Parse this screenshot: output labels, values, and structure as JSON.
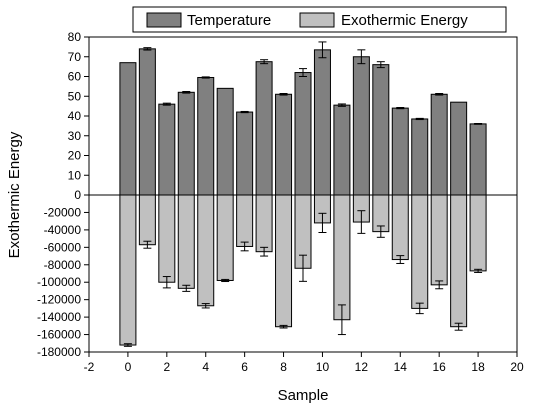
{
  "chart_data": {
    "type": "bar",
    "title": "",
    "xlabel": "Sample",
    "ylabel": "Exothermic Energy",
    "xlim": [
      -2,
      20
    ],
    "x_ticks": [
      -2,
      0,
      2,
      4,
      6,
      8,
      10,
      12,
      14,
      16,
      18,
      20
    ],
    "grid": false,
    "legend_position": "top",
    "upper_axis": {
      "ylim": [
        0,
        80
      ],
      "ticks": [
        0,
        10,
        20,
        30,
        40,
        50,
        60,
        70,
        80
      ]
    },
    "lower_axis": {
      "ylim": [
        -180000,
        0
      ],
      "ticks": [
        -180000,
        -160000,
        -140000,
        -120000,
        -100000,
        -80000,
        -60000,
        -40000,
        -20000
      ]
    },
    "series": [
      {
        "name": "Temperature",
        "color": "#808080",
        "x": [
          0,
          1,
          2,
          3,
          4,
          5,
          6,
          7,
          8,
          9,
          10,
          11,
          12,
          13,
          14,
          15,
          16,
          17,
          18
        ],
        "values": [
          67,
          74,
          46,
          52,
          59.5,
          54,
          42,
          67.5,
          51,
          62,
          73.5,
          45.5,
          70,
          66,
          44,
          38.5,
          51,
          47,
          36
        ],
        "errors": [
          0,
          0.6,
          0.5,
          0.4,
          0.3,
          0,
          0.3,
          1,
          0.4,
          2,
          4,
          0.6,
          3.5,
          1.5,
          0.3,
          0.3,
          0.4,
          0,
          0.2
        ]
      },
      {
        "name": "Exothermic Energy",
        "color": "#c0c0c0",
        "x": [
          0,
          1,
          2,
          3,
          4,
          5,
          6,
          7,
          8,
          9,
          10,
          11,
          12,
          13,
          14,
          15,
          16,
          17,
          18
        ],
        "values": [
          -172000,
          -57000,
          -100000,
          -107000,
          -127000,
          -98000,
          -59000,
          -65000,
          -151000,
          -84000,
          -32000,
          -143000,
          -31000,
          -42000,
          -74000,
          -130000,
          -103000,
          -151000,
          -87000
        ],
        "errors": [
          1500,
          4000,
          6500,
          3500,
          2500,
          1200,
          5000,
          5000,
          1500,
          15000,
          11000,
          17000,
          13000,
          6500,
          4500,
          6000,
          4500,
          4000,
          1800
        ]
      }
    ]
  }
}
